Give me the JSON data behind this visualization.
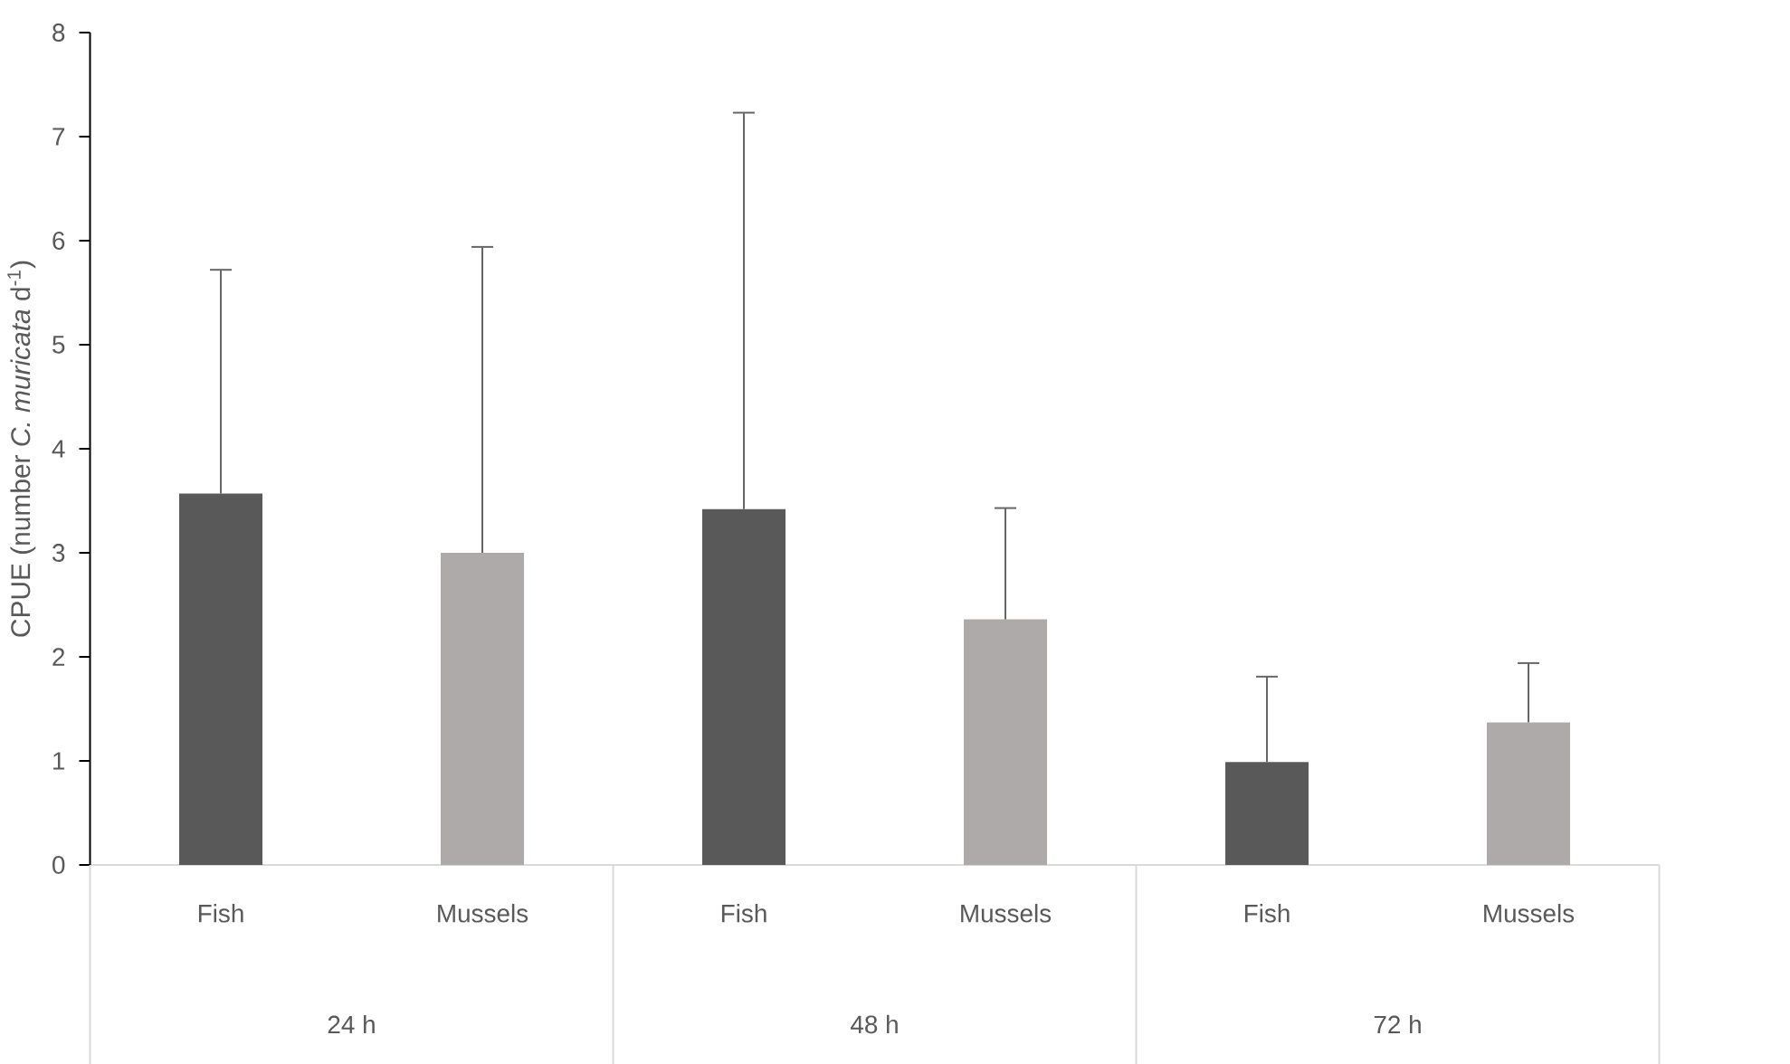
{
  "chart_data": {
    "type": "bar",
    "ylabel": "CPUE (number *C. muricata* d$^{-1}$)",
    "categories": [
      "Fish",
      "Mussels",
      "Fish",
      "Mussels",
      "Fish",
      "Mussels"
    ],
    "values": [
      3.57,
      3.0,
      3.42,
      2.36,
      0.99,
      1.37
    ],
    "colors": [
      "#595959",
      "#aeaaaa",
      "#595959",
      "#aeaaaa",
      "#595959",
      "#aeaaaa"
    ],
    "errors": [
      [
        3.57,
        5.72
      ],
      [
        3.0,
        5.94
      ],
      [
        3.42,
        7.23
      ],
      [
        2.36,
        3.43
      ],
      [
        0.99,
        1.81
      ],
      [
        1.37,
        1.94
      ]
    ],
    "annotations": [
      "24 h",
      "48 h",
      "72 h"
    ],
    "ylim": [
      0,
      8
    ],
    "yticks": [
      0,
      1,
      2,
      3,
      4,
      5,
      6,
      7,
      8
    ],
    "grid": false
  }
}
